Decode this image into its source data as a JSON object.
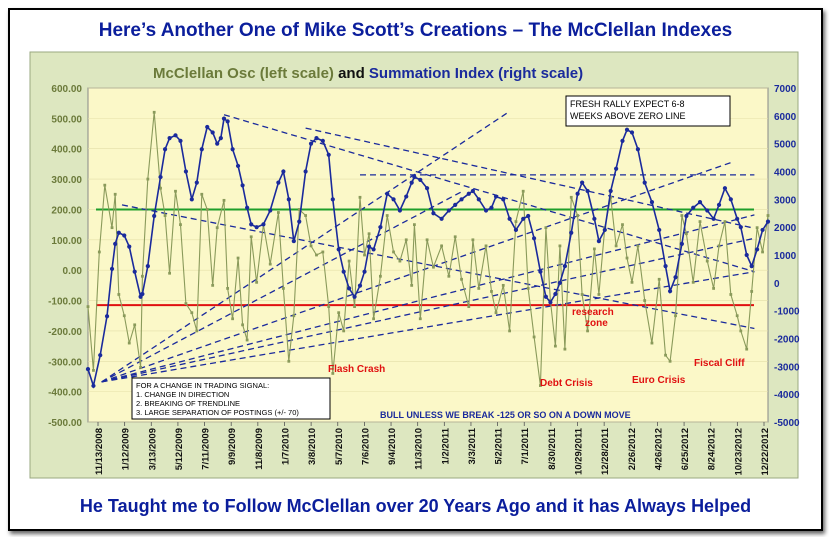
{
  "headline_top": "Here’s Another One of Mike Scott’s Creations – The McClellan Indexes",
  "headline_bottom": "He Taught me to Follow McClellan over 20 Years Ago and it has Always Helped",
  "colors": {
    "plot_bg": "#fbf8c8",
    "outer_bg": "#dde7c0",
    "osc": "#8a9a5b",
    "summ": "#1a2a9c",
    "green": "#1e9e2a",
    "red": "#e01010"
  },
  "chart_data": {
    "type": "line",
    "title_parts": [
      "McClellan Osc (left scale)",
      " and ",
      "Summation Index (right scale)"
    ],
    "left_axis": {
      "range": [
        -500,
        600
      ],
      "ticks": [
        "600.00",
        "500.00",
        "400.00",
        "300.00",
        "200.00",
        "100.00",
        "0.00",
        "-100.00",
        "-200.00",
        "-300.00",
        "-400.00",
        "-500.00"
      ]
    },
    "right_axis": {
      "range": [
        -5000,
        7000
      ],
      "ticks": [
        "7000",
        "6000",
        "5000",
        "4000",
        "3000",
        "2000",
        "1000",
        "0",
        "-1000",
        "-2000",
        "-3000",
        "-4000",
        "-5000"
      ]
    },
    "x_ticks": [
      "11/13/2008",
      "1/12/2009",
      "3/13/2009",
      "5/12/2009",
      "7/11/2009",
      "9/9/2009",
      "11/8/2009",
      "1/7/2010",
      "3/8/2010",
      "5/7/2010",
      "7/6/2010",
      "9/4/2010",
      "11/3/2010",
      "1/2/2011",
      "3/3/2011",
      "5/2/2011",
      "7/1/2011",
      "8/30/2011",
      "10/29/2011",
      "12/28/2011",
      "2/26/2012",
      "4/26/2012",
      "6/25/2012",
      "8/24/2012",
      "10/23/2012",
      "12/22/2012"
    ],
    "x_range": [
      "11/13/2008",
      "12/22/2012"
    ],
    "series": [
      {
        "name": "Summation Index (right scale)",
        "axis": "right",
        "points": [
          [
            "11/13/2008",
            -3100
          ],
          [
            "11/25/2008",
            -3700
          ],
          [
            "12/10/2008",
            -2600
          ],
          [
            "12/25/2008",
            -1200
          ],
          [
            "1/5/2009",
            500
          ],
          [
            "1/12/2009",
            1400
          ],
          [
            "1/20/2009",
            1800
          ],
          [
            "2/1/2009",
            1700
          ],
          [
            "2/12/2009",
            1300
          ],
          [
            "2/24/2009",
            400
          ],
          [
            "3/9/2009",
            -500
          ],
          [
            "3/13/2009",
            -400
          ],
          [
            "3/25/2009",
            600
          ],
          [
            "4/8/2009",
            2400
          ],
          [
            "4/22/2009",
            3800
          ],
          [
            "5/2/2009",
            4800
          ],
          [
            "5/12/2009",
            5200
          ],
          [
            "5/25/2009",
            5300
          ],
          [
            "6/5/2009",
            5100
          ],
          [
            "6/17/2009",
            4000
          ],
          [
            "6/30/2009",
            3000
          ],
          [
            "7/11/2009",
            3600
          ],
          [
            "7/22/2009",
            4800
          ],
          [
            "8/3/2009",
            5600
          ],
          [
            "8/15/2009",
            5400
          ],
          [
            "8/25/2009",
            5000
          ],
          [
            "9/2/2009",
            5200
          ],
          [
            "9/9/2009",
            5900
          ],
          [
            "9/17/2009",
            5800
          ],
          [
            "9/28/2009",
            4800
          ],
          [
            "10/10/2009",
            4200
          ],
          [
            "10/20/2009",
            3500
          ],
          [
            "10/30/2009",
            2700
          ],
          [
            "11/8/2009",
            2100
          ],
          [
            "11/20/2009",
            2000
          ],
          [
            "12/5/2009",
            2100
          ],
          [
            "12/20/2009",
            2600
          ],
          [
            "1/7/2010",
            3600
          ],
          [
            "1/18/2010",
            4000
          ],
          [
            "1/30/2010",
            3000
          ],
          [
            "2/10/2010",
            1500
          ],
          [
            "2/22/2010",
            2200
          ],
          [
            "3/8/2010",
            4000
          ],
          [
            "3/20/2010",
            5000
          ],
          [
            "4/1/2010",
            5200
          ],
          [
            "4/15/2010",
            5100
          ],
          [
            "4/28/2010",
            4600
          ],
          [
            "5/7/2010",
            3000
          ],
          [
            "5/20/2010",
            1200
          ],
          [
            "5/31/2010",
            400
          ],
          [
            "6/12/2010",
            -200
          ],
          [
            "6/24/2010",
            -500
          ],
          [
            "7/6/2010",
            -100
          ],
          [
            "7/16/2010",
            400
          ],
          [
            "7/26/2010",
            1300
          ],
          [
            "8/5/2010",
            1200
          ],
          [
            "8/20/2010",
            2000
          ],
          [
            "9/4/2010",
            3200
          ],
          [
            "9/18/2010",
            3000
          ],
          [
            "10/2/2010",
            2600
          ],
          [
            "10/16/2010",
            3100
          ],
          [
            "10/28/2010",
            3600
          ],
          [
            "11/3/2010",
            3800
          ],
          [
            "11/16/2010",
            3700
          ],
          [
            "12/1/2010",
            3400
          ],
          [
            "12/15/2010",
            2500
          ],
          [
            "1/2/2011",
            2300
          ],
          [
            "1/18/2011",
            2600
          ],
          [
            "2/1/2011",
            2800
          ],
          [
            "2/15/2011",
            3000
          ],
          [
            "3/3/2011",
            3200
          ],
          [
            "3/12/2011",
            3300
          ],
          [
            "3/25/2011",
            3000
          ],
          [
            "4/10/2011",
            2600
          ],
          [
            "4/22/2011",
            2700
          ],
          [
            "5/2/2011",
            3100
          ],
          [
            "5/18/2011",
            3000
          ],
          [
            "6/1/2011",
            2300
          ],
          [
            "6/15/2011",
            1900
          ],
          [
            "7/1/2011",
            2300
          ],
          [
            "7/12/2011",
            2400
          ],
          [
            "7/25/2011",
            1600
          ],
          [
            "8/8/2011",
            400
          ],
          [
            "8/20/2011",
            -500
          ],
          [
            "8/30/2011",
            -700
          ],
          [
            "9/10/2011",
            -400
          ],
          [
            "9/20/2011",
            0
          ],
          [
            "10/1/2011",
            600
          ],
          [
            "10/15/2011",
            1800
          ],
          [
            "10/29/2011",
            3200
          ],
          [
            "11/8/2011",
            3600
          ],
          [
            "11/20/2011",
            3300
          ],
          [
            "12/5/2011",
            2300
          ],
          [
            "12/15/2011",
            1500
          ],
          [
            "12/28/2011",
            1900
          ],
          [
            "1/10/2012",
            3300
          ],
          [
            "1/22/2012",
            4100
          ],
          [
            "2/5/2012",
            5100
          ],
          [
            "2/15/2012",
            5500
          ],
          [
            "2/26/2012",
            5400
          ],
          [
            "3/10/2012",
            4800
          ],
          [
            "3/25/2012",
            3600
          ],
          [
            "4/10/2012",
            2900
          ],
          [
            "4/26/2012",
            1900
          ],
          [
            "5/10/2012",
            600
          ],
          [
            "5/20/2012",
            -300
          ],
          [
            "6/1/2012",
            200
          ],
          [
            "6/15/2012",
            1400
          ],
          [
            "6/25/2012",
            2400
          ],
          [
            "7/10/2012",
            2700
          ],
          [
            "7/25/2012",
            2900
          ],
          [
            "8/10/2012",
            2600
          ],
          [
            "8/24/2012",
            2300
          ],
          [
            "9/5/2012",
            2800
          ],
          [
            "9/18/2012",
            3400
          ],
          [
            "10/1/2012",
            3000
          ],
          [
            "10/15/2012",
            2300
          ],
          [
            "10/23/2012",
            2000
          ],
          [
            "11/5/2012",
            1000
          ],
          [
            "11/16/2012",
            600
          ],
          [
            "11/28/2012",
            1200
          ],
          [
            "12/10/2012",
            1900
          ],
          [
            "12/22/2012",
            2200
          ]
        ]
      },
      {
        "name": "McClellan Osc (left scale)",
        "axis": "left",
        "points": [
          [
            "11/13/2008",
            -120
          ],
          [
            "11/25/2008",
            -330
          ],
          [
            "12/8/2008",
            60
          ],
          [
            "12/20/2008",
            280
          ],
          [
            "1/5/2009",
            140
          ],
          [
            "1/12/2009",
            250
          ],
          [
            "1/20/2009",
            -80
          ],
          [
            "2/1/2009",
            -150
          ],
          [
            "2/12/2009",
            -240
          ],
          [
            "2/24/2009",
            -180
          ],
          [
            "3/9/2009",
            -320
          ],
          [
            "3/13/2009",
            -20
          ],
          [
            "3/25/2009",
            300
          ],
          [
            "4/8/2009",
            520
          ],
          [
            "4/22/2009",
            270
          ],
          [
            "5/2/2009",
            180
          ],
          [
            "5/12/2009",
            -10
          ],
          [
            "5/25/2009",
            260
          ],
          [
            "6/5/2009",
            150
          ],
          [
            "6/17/2009",
            -110
          ],
          [
            "6/30/2009",
            -140
          ],
          [
            "7/11/2009",
            -200
          ],
          [
            "7/22/2009",
            250
          ],
          [
            "8/3/2009",
            200
          ],
          [
            "8/15/2009",
            -50
          ],
          [
            "8/25/2009",
            140
          ],
          [
            "9/9/2009",
            230
          ],
          [
            "9/17/2009",
            -60
          ],
          [
            "9/28/2009",
            -160
          ],
          [
            "10/10/2009",
            40
          ],
          [
            "10/20/2009",
            -180
          ],
          [
            "10/30/2009",
            -230
          ],
          [
            "11/8/2009",
            110
          ],
          [
            "11/20/2009",
            -40
          ],
          [
            "12/5/2009",
            150
          ],
          [
            "12/20/2009",
            20
          ],
          [
            "1/7/2010",
            190
          ],
          [
            "1/18/2010",
            -60
          ],
          [
            "1/30/2010",
            -300
          ],
          [
            "2/10/2010",
            -150
          ],
          [
            "2/22/2010",
            200
          ],
          [
            "3/8/2010",
            180
          ],
          [
            "3/20/2010",
            80
          ],
          [
            "4/1/2010",
            50
          ],
          [
            "4/15/2010",
            60
          ],
          [
            "4/28/2010",
            -120
          ],
          [
            "5/7/2010",
            -340
          ],
          [
            "5/20/2010",
            -140
          ],
          [
            "5/31/2010",
            -200
          ],
          [
            "6/12/2010",
            30
          ],
          [
            "6/24/2010",
            -120
          ],
          [
            "7/6/2010",
            240
          ],
          [
            "7/16/2010",
            50
          ],
          [
            "7/26/2010",
            120
          ],
          [
            "8/5/2010",
            -160
          ],
          [
            "8/20/2010",
            -20
          ],
          [
            "9/4/2010",
            180
          ],
          [
            "9/18/2010",
            60
          ],
          [
            "10/2/2010",
            30
          ],
          [
            "10/16/2010",
            100
          ],
          [
            "10/28/2010",
            -50
          ],
          [
            "11/3/2010",
            150
          ],
          [
            "11/16/2010",
            -160
          ],
          [
            "12/1/2010",
            100
          ],
          [
            "12/15/2010",
            10
          ],
          [
            "1/2/2011",
            80
          ],
          [
            "1/18/2011",
            -20
          ],
          [
            "2/1/2011",
            110
          ],
          [
            "2/15/2011",
            -30
          ],
          [
            "3/3/2011",
            -120
          ],
          [
            "3/12/2011",
            100
          ],
          [
            "3/25/2011",
            -60
          ],
          [
            "4/10/2011",
            80
          ],
          [
            "4/22/2011",
            -70
          ],
          [
            "5/2/2011",
            -140
          ],
          [
            "5/18/2011",
            -50
          ],
          [
            "6/1/2011",
            -200
          ],
          [
            "6/15/2011",
            160
          ],
          [
            "7/1/2011",
            260
          ],
          [
            "7/12/2011",
            -60
          ],
          [
            "7/25/2011",
            -220
          ],
          [
            "8/8/2011",
            -380
          ],
          [
            "8/20/2011",
            140
          ],
          [
            "8/30/2011",
            -100
          ],
          [
            "9/10/2011",
            -250
          ],
          [
            "9/20/2011",
            80
          ],
          [
            "10/1/2011",
            -260
          ],
          [
            "10/15/2011",
            240
          ],
          [
            "10/29/2011",
            180
          ],
          [
            "11/8/2011",
            -80
          ],
          [
            "11/20/2011",
            -200
          ],
          [
            "12/5/2011",
            70
          ],
          [
            "12/15/2011",
            -80
          ],
          [
            "12/28/2011",
            140
          ],
          [
            "1/10/2012",
            240
          ],
          [
            "1/22/2012",
            80
          ],
          [
            "2/5/2012",
            150
          ],
          [
            "2/15/2012",
            40
          ],
          [
            "2/26/2012",
            -40
          ],
          [
            "3/10/2012",
            80
          ],
          [
            "3/25/2012",
            -100
          ],
          [
            "4/10/2012",
            -240
          ],
          [
            "4/26/2012",
            -30
          ],
          [
            "5/10/2012",
            -280
          ],
          [
            "5/20/2012",
            -300
          ],
          [
            "6/1/2012",
            -150
          ],
          [
            "6/15/2012",
            180
          ],
          [
            "6/25/2012",
            120
          ],
          [
            "7/10/2012",
            -40
          ],
          [
            "7/25/2012",
            160
          ],
          [
            "8/10/2012",
            30
          ],
          [
            "8/24/2012",
            -60
          ],
          [
            "9/5/2012",
            80
          ],
          [
            "9/18/2012",
            160
          ],
          [
            "10/1/2012",
            -80
          ],
          [
            "10/15/2012",
            -150
          ],
          [
            "10/23/2012",
            -200
          ],
          [
            "11/5/2012",
            -260
          ],
          [
            "11/16/2012",
            -70
          ],
          [
            "11/28/2012",
            140
          ],
          [
            "12/10/2012",
            60
          ],
          [
            "12/22/2012",
            180
          ]
        ]
      }
    ],
    "reference_lines": [
      {
        "color": "green",
        "axis": "left",
        "y": 200
      },
      {
        "color": "red",
        "axis": "left",
        "y": -115
      }
    ],
    "annotations": {
      "box_top": [
        "FRESH RALLY EXPECT 6-8",
        "WEEKS ABOVE ZERO LINE"
      ],
      "box_left": [
        "FOR A CHANGE IN TRADING SIGNAL:",
        "1. CHANGE IN DIRECTION",
        "2. BREAKING OF TRENDLINE",
        "3. LARGE SEPARATION OF POSTINGS (+/- 70)"
      ],
      "bull_note": "BULL UNLESS WE BREAK -125 OR SO ON A DOWN MOVE",
      "flash_crash": "Flash Crash",
      "debt_crisis": "Debt Crisis",
      "research_zone_1": "research",
      "research_zone_2": "zone",
      "euro_crisis": "Euro Crisis",
      "fiscal_cliff": "Fiscal Cliff"
    }
  }
}
